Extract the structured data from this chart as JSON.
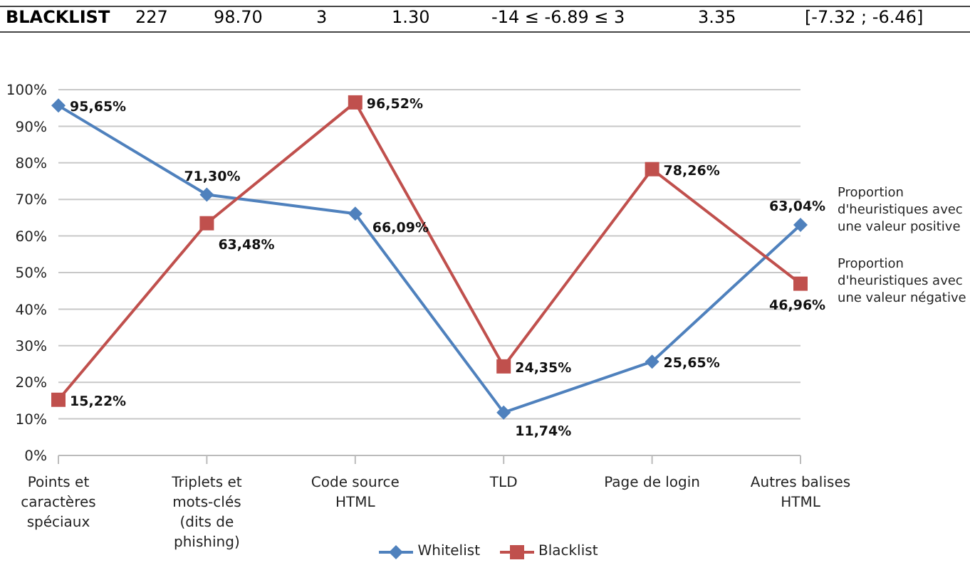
{
  "chart_data": {
    "type": "line",
    "categories": [
      "Points et caractères spéciaux",
      "Triplets et mots-clés (dits de phishing)",
      "Code source HTML",
      "TLD",
      "Page de login",
      "Autres balises HTML"
    ],
    "series": [
      {
        "name": "Whitelist",
        "color": "#4f81bd",
        "marker": "diamond",
        "values": [
          95.65,
          71.3,
          66.09,
          11.74,
          25.65,
          63.04
        ],
        "value_labels": [
          "95,65%",
          "71,30%",
          "66,09%",
          "11,74%",
          "25,65%",
          "63,04%"
        ]
      },
      {
        "name": "Blacklist",
        "color": "#c0504d",
        "marker": "square",
        "values": [
          15.22,
          63.48,
          96.52,
          24.35,
          78.26,
          46.96
        ],
        "value_labels": [
          "15,22%",
          "63,48%",
          "96,52%",
          "24,35%",
          "78,26%",
          "46,96%"
        ]
      }
    ],
    "ylim": [
      0,
      100
    ],
    "yticks": [
      {
        "value": 0,
        "label": "0%"
      },
      {
        "value": 10,
        "label": "10%"
      },
      {
        "value": 20,
        "label": "20%"
      },
      {
        "value": 30,
        "label": "30%"
      },
      {
        "value": 40,
        "label": "40%"
      },
      {
        "value": 50,
        "label": "50%"
      },
      {
        "value": 60,
        "label": "60%"
      },
      {
        "value": 70,
        "label": "70%"
      },
      {
        "value": 80,
        "label": "80%"
      },
      {
        "value": 90,
        "label": "90%"
      },
      {
        "value": 100,
        "label": "100%"
      }
    ],
    "grid": "y",
    "legend": "bottom",
    "line_style": "solid",
    "annotations": [
      "BLACKLIST",
      "227",
      "98.70",
      "3",
      "1.30",
      "-14 ≤ -6.89 ≤ 3",
      "3.35",
      "[-7.32 ; -6.46]",
      "Proportion d'heuristiques avec une valeur positive",
      "Proportion d'heuristiques avec une valeur négative"
    ]
  }
}
